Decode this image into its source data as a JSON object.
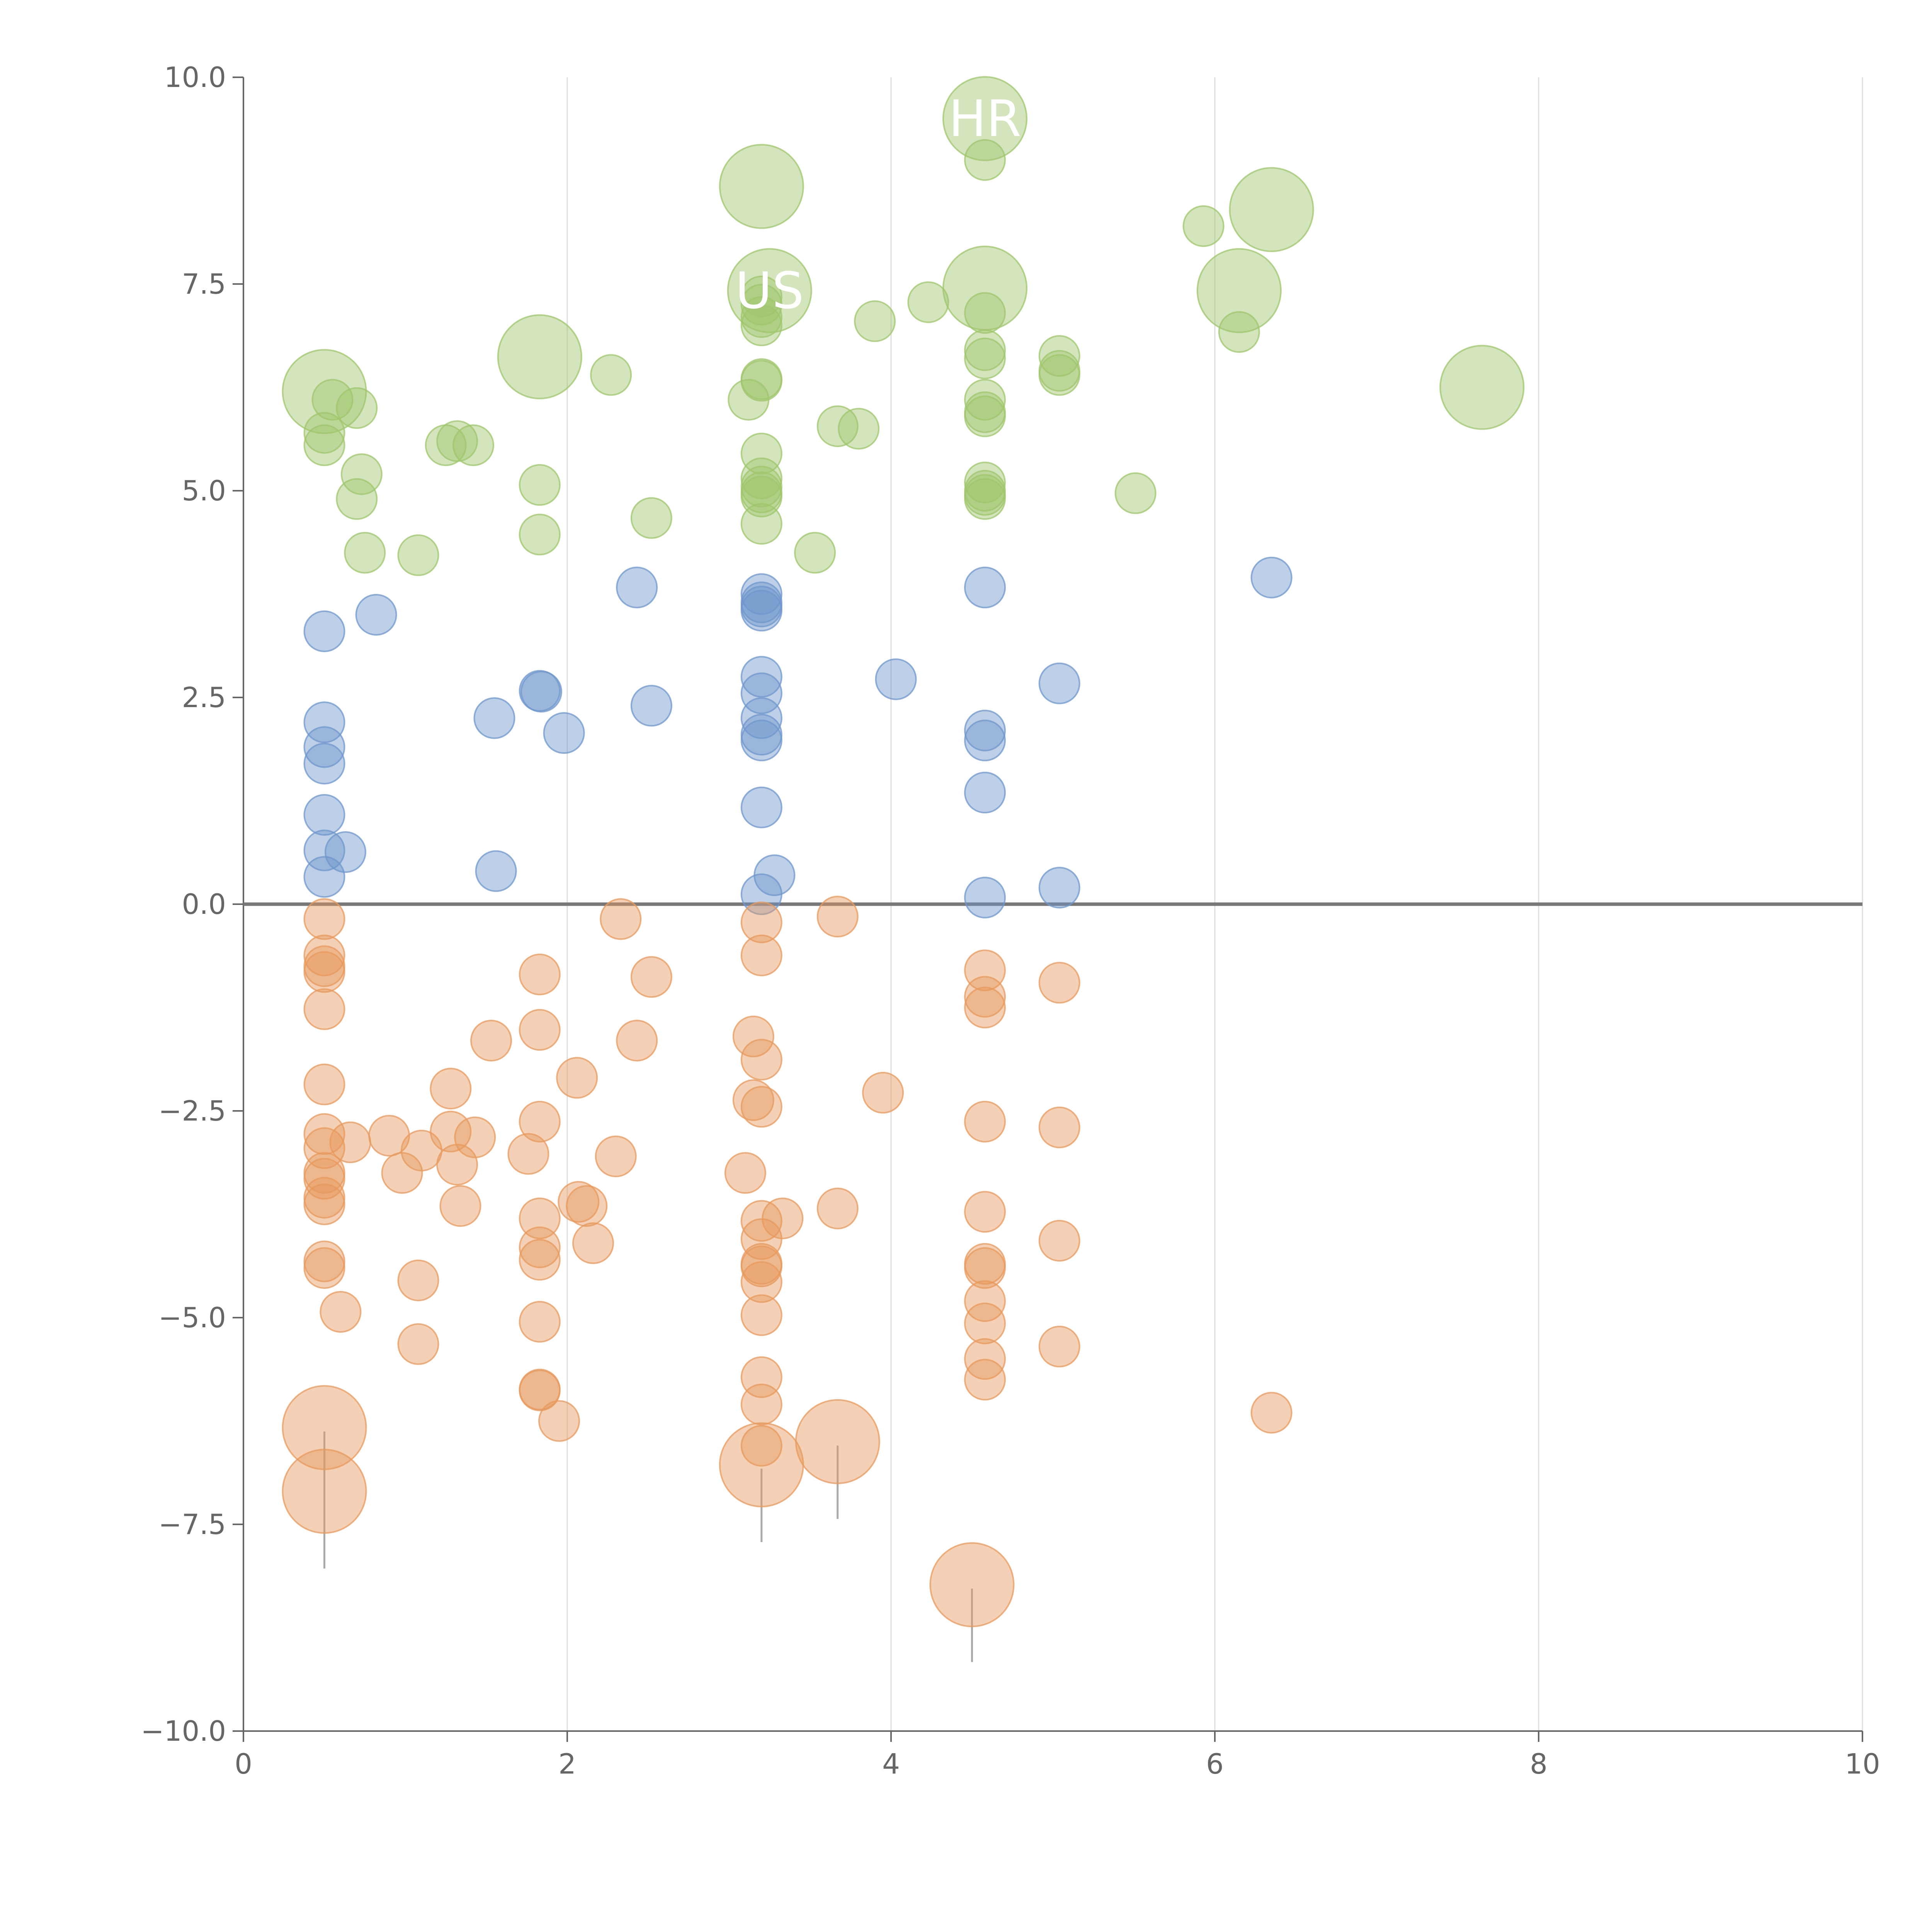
{
  "colors": {
    "positive_high": "#9fc66c",
    "positive_low": "#6f97cc",
    "negative": "#e79a5e",
    "axis": "#666666",
    "grid": "#dddddd"
  },
  "chart_data": {
    "type": "scatter",
    "xlim": [
      0,
      10
    ],
    "ylim": [
      -10,
      10
    ],
    "x_ticks": [
      0,
      2,
      4,
      6,
      8,
      10
    ],
    "x_tick_labels": [
      "0",
      "2",
      "4",
      "6",
      "8",
      "10"
    ],
    "y_ticks": [
      10,
      7.5,
      5,
      2.5,
      0,
      -2.5,
      -5,
      -7.5,
      -10
    ],
    "y_tick_labels": [
      "10.0",
      "7.5",
      "5.0",
      "2.5",
      "0.0",
      "−2.5",
      "−5.0",
      "−7.5",
      "−10.0"
    ],
    "grid": "vertical",
    "reference_line_y": 0,
    "series": [
      {
        "color_key": "positive_high",
        "points": [
          [
            0.5,
            6.2,
            2
          ],
          [
            0.5,
            5.7,
            1
          ],
          [
            0.5,
            5.55,
            1
          ],
          [
            0.55,
            6.1,
            1
          ],
          [
            0.7,
            6.0,
            1
          ],
          [
            0.7,
            4.9,
            1
          ],
          [
            0.73,
            5.2,
            1
          ],
          [
            0.75,
            4.25,
            1
          ],
          [
            1.08,
            4.22,
            1
          ],
          [
            1.25,
            5.55,
            1
          ],
          [
            1.32,
            5.6,
            1
          ],
          [
            1.42,
            5.55,
            1
          ],
          [
            1.83,
            6.62,
            2
          ],
          [
            1.83,
            5.07,
            1
          ],
          [
            1.83,
            4.47,
            1
          ],
          [
            2.27,
            6.4,
            1
          ],
          [
            2.52,
            4.67,
            1
          ],
          [
            3.2,
            8.68,
            2
          ],
          [
            3.25,
            7.42,
            2
          ],
          [
            3.2,
            7.35,
            1
          ],
          [
            3.2,
            7.25,
            1
          ],
          [
            3.2,
            7.1,
            1
          ],
          [
            3.2,
            7.0,
            1
          ],
          [
            3.2,
            6.35,
            1
          ],
          [
            3.2,
            6.33,
            1
          ],
          [
            3.12,
            6.1,
            1
          ],
          [
            3.2,
            5.45,
            1
          ],
          [
            3.2,
            5.15,
            1
          ],
          [
            3.2,
            5.05,
            1
          ],
          [
            3.2,
            4.98,
            1
          ],
          [
            3.2,
            4.93,
            1
          ],
          [
            3.2,
            4.6,
            1
          ],
          [
            3.53,
            4.25,
            1
          ],
          [
            3.67,
            5.78,
            1
          ],
          [
            3.8,
            5.75,
            1
          ],
          [
            3.9,
            7.05,
            1
          ],
          [
            4.23,
            7.28,
            1
          ],
          [
            4.58,
            9.5,
            2
          ],
          [
            4.58,
            9.0,
            1
          ],
          [
            4.58,
            7.45,
            2
          ],
          [
            4.58,
            7.15,
            1
          ],
          [
            4.58,
            6.7,
            1
          ],
          [
            4.58,
            6.6,
            1
          ],
          [
            4.58,
            6.1,
            1
          ],
          [
            4.58,
            5.95,
            1
          ],
          [
            4.58,
            5.9,
            1
          ],
          [
            4.58,
            5.1,
            1
          ],
          [
            4.58,
            5.0,
            1
          ],
          [
            4.58,
            4.95,
            1
          ],
          [
            4.58,
            4.9,
            1
          ],
          [
            5.04,
            6.63,
            1
          ],
          [
            5.04,
            6.45,
            1
          ],
          [
            5.04,
            6.4,
            1
          ],
          [
            5.51,
            4.97,
            1
          ],
          [
            5.93,
            8.2,
            1
          ],
          [
            6.15,
            7.42,
            2
          ],
          [
            6.15,
            6.92,
            1
          ],
          [
            6.35,
            8.4,
            2
          ],
          [
            7.65,
            6.25,
            2
          ]
        ]
      },
      {
        "color_key": "positive_low",
        "points": [
          [
            0.5,
            3.3,
            1
          ],
          [
            0.5,
            2.2,
            1
          ],
          [
            0.5,
            1.9,
            1
          ],
          [
            0.5,
            1.7,
            1
          ],
          [
            0.5,
            1.08,
            1
          ],
          [
            0.5,
            0.65,
            1
          ],
          [
            0.5,
            0.33,
            1
          ],
          [
            0.63,
            0.63,
            1
          ],
          [
            0.82,
            3.5,
            1
          ],
          [
            1.55,
            2.25,
            1
          ],
          [
            1.56,
            0.4,
            1
          ],
          [
            1.83,
            2.58,
            1
          ],
          [
            1.84,
            2.57,
            1
          ],
          [
            1.98,
            2.07,
            1
          ],
          [
            2.43,
            3.83,
            1
          ],
          [
            2.52,
            2.4,
            1
          ],
          [
            3.2,
            3.75,
            1
          ],
          [
            3.2,
            3.65,
            1
          ],
          [
            3.2,
            3.6,
            1
          ],
          [
            3.2,
            3.55,
            1
          ],
          [
            3.2,
            2.75,
            1
          ],
          [
            3.2,
            2.55,
            1
          ],
          [
            3.2,
            2.25,
            1
          ],
          [
            3.2,
            2.05,
            1
          ],
          [
            3.2,
            1.98,
            1
          ],
          [
            3.2,
            1.17,
            1
          ],
          [
            3.28,
            0.35,
            1
          ],
          [
            3.2,
            0.12,
            1
          ],
          [
            4.03,
            2.72,
            1
          ],
          [
            4.58,
            3.83,
            1
          ],
          [
            4.58,
            2.1,
            1
          ],
          [
            4.58,
            1.98,
            1
          ],
          [
            4.58,
            1.35,
            1
          ],
          [
            4.58,
            0.08,
            1
          ],
          [
            5.04,
            2.67,
            1
          ],
          [
            5.04,
            0.2,
            1
          ],
          [
            6.35,
            3.95,
            1
          ]
        ]
      },
      {
        "color_key": "negative",
        "points": [
          [
            0.5,
            -0.18,
            1
          ],
          [
            0.5,
            -0.62,
            1
          ],
          [
            0.5,
            -0.75,
            1
          ],
          [
            0.5,
            -0.82,
            1
          ],
          [
            0.5,
            -1.27,
            1
          ],
          [
            0.5,
            -2.18,
            1
          ],
          [
            0.5,
            -2.78,
            1
          ],
          [
            0.5,
            -2.95,
            1
          ],
          [
            0.5,
            -3.25,
            1
          ],
          [
            0.5,
            -3.32,
            1
          ],
          [
            0.5,
            -3.55,
            1
          ],
          [
            0.5,
            -3.63,
            1
          ],
          [
            0.5,
            -4.32,
            1
          ],
          [
            0.5,
            -4.4,
            1
          ],
          [
            0.6,
            -4.93,
            1
          ],
          [
            0.66,
            -2.88,
            1
          ],
          [
            0.5,
            -6.33,
            2
          ],
          [
            0.5,
            -7.1,
            2
          ],
          [
            0.9,
            -2.8,
            1
          ],
          [
            0.98,
            -3.25,
            1
          ],
          [
            1.1,
            -2.98,
            1
          ],
          [
            1.08,
            -4.55,
            1
          ],
          [
            1.08,
            -5.32,
            1
          ],
          [
            1.28,
            -2.23,
            1
          ],
          [
            1.28,
            -2.75,
            1
          ],
          [
            1.32,
            -3.15,
            1
          ],
          [
            1.34,
            -3.65,
            1
          ],
          [
            1.43,
            -2.82,
            1
          ],
          [
            1.53,
            -1.65,
            1
          ],
          [
            1.76,
            -3.02,
            1
          ],
          [
            1.83,
            -0.85,
            1
          ],
          [
            1.83,
            -1.52,
            1
          ],
          [
            1.83,
            -2.63,
            1
          ],
          [
            1.83,
            -3.8,
            1
          ],
          [
            1.83,
            -4.15,
            1
          ],
          [
            1.83,
            -4.3,
            1
          ],
          [
            1.83,
            -5.05,
            1
          ],
          [
            1.83,
            -5.87,
            1
          ],
          [
            1.83,
            -5.88,
            1
          ],
          [
            1.95,
            -6.25,
            1
          ],
          [
            2.06,
            -2.1,
            1
          ],
          [
            2.07,
            -3.6,
            1
          ],
          [
            2.12,
            -3.65,
            1
          ],
          [
            2.16,
            -4.1,
            1
          ],
          [
            2.3,
            -3.05,
            1
          ],
          [
            2.33,
            -0.18,
            1
          ],
          [
            2.43,
            -1.65,
            1
          ],
          [
            2.52,
            -0.88,
            1
          ],
          [
            3.1,
            -3.25,
            1
          ],
          [
            3.15,
            -2.37,
            1
          ],
          [
            3.15,
            -1.6,
            1
          ],
          [
            3.2,
            -0.22,
            1
          ],
          [
            3.2,
            -0.62,
            1
          ],
          [
            3.2,
            -1.88,
            1
          ],
          [
            3.2,
            -2.45,
            1
          ],
          [
            3.2,
            -3.83,
            1
          ],
          [
            3.2,
            -4.05,
            1
          ],
          [
            3.2,
            -4.35,
            1
          ],
          [
            3.2,
            -4.38,
            1
          ],
          [
            3.2,
            -4.57,
            1
          ],
          [
            3.2,
            -4.97,
            1
          ],
          [
            3.2,
            -5.72,
            1
          ],
          [
            3.2,
            -6.05,
            1
          ],
          [
            3.2,
            -6.55,
            1
          ],
          [
            3.2,
            -6.78,
            2
          ],
          [
            3.33,
            -3.8,
            1
          ],
          [
            3.67,
            -0.15,
            1
          ],
          [
            3.67,
            -3.68,
            1
          ],
          [
            3.67,
            -6.5,
            2
          ],
          [
            3.95,
            -2.28,
            1
          ],
          [
            4.5,
            -8.23,
            2
          ],
          [
            4.58,
            -0.8,
            1
          ],
          [
            4.58,
            -1.12,
            1
          ],
          [
            4.58,
            -1.25,
            1
          ],
          [
            4.58,
            -2.63,
            1
          ],
          [
            4.58,
            -3.72,
            1
          ],
          [
            4.58,
            -4.35,
            1
          ],
          [
            4.58,
            -4.4,
            1
          ],
          [
            4.58,
            -4.8,
            1
          ],
          [
            4.58,
            -5.07,
            1
          ],
          [
            4.58,
            -5.5,
            1
          ],
          [
            4.58,
            -5.75,
            1
          ],
          [
            5.04,
            -0.95,
            1
          ],
          [
            5.04,
            -2.7,
            1
          ],
          [
            5.04,
            -4.07,
            1
          ],
          [
            5.04,
            -5.35,
            1
          ],
          [
            6.35,
            -6.15,
            1
          ]
        ]
      }
    ],
    "labels": [
      {
        "text": "HR",
        "x": 4.58,
        "y": 9.5
      },
      {
        "text": "US",
        "x": 3.25,
        "y": 7.42
      }
    ]
  }
}
